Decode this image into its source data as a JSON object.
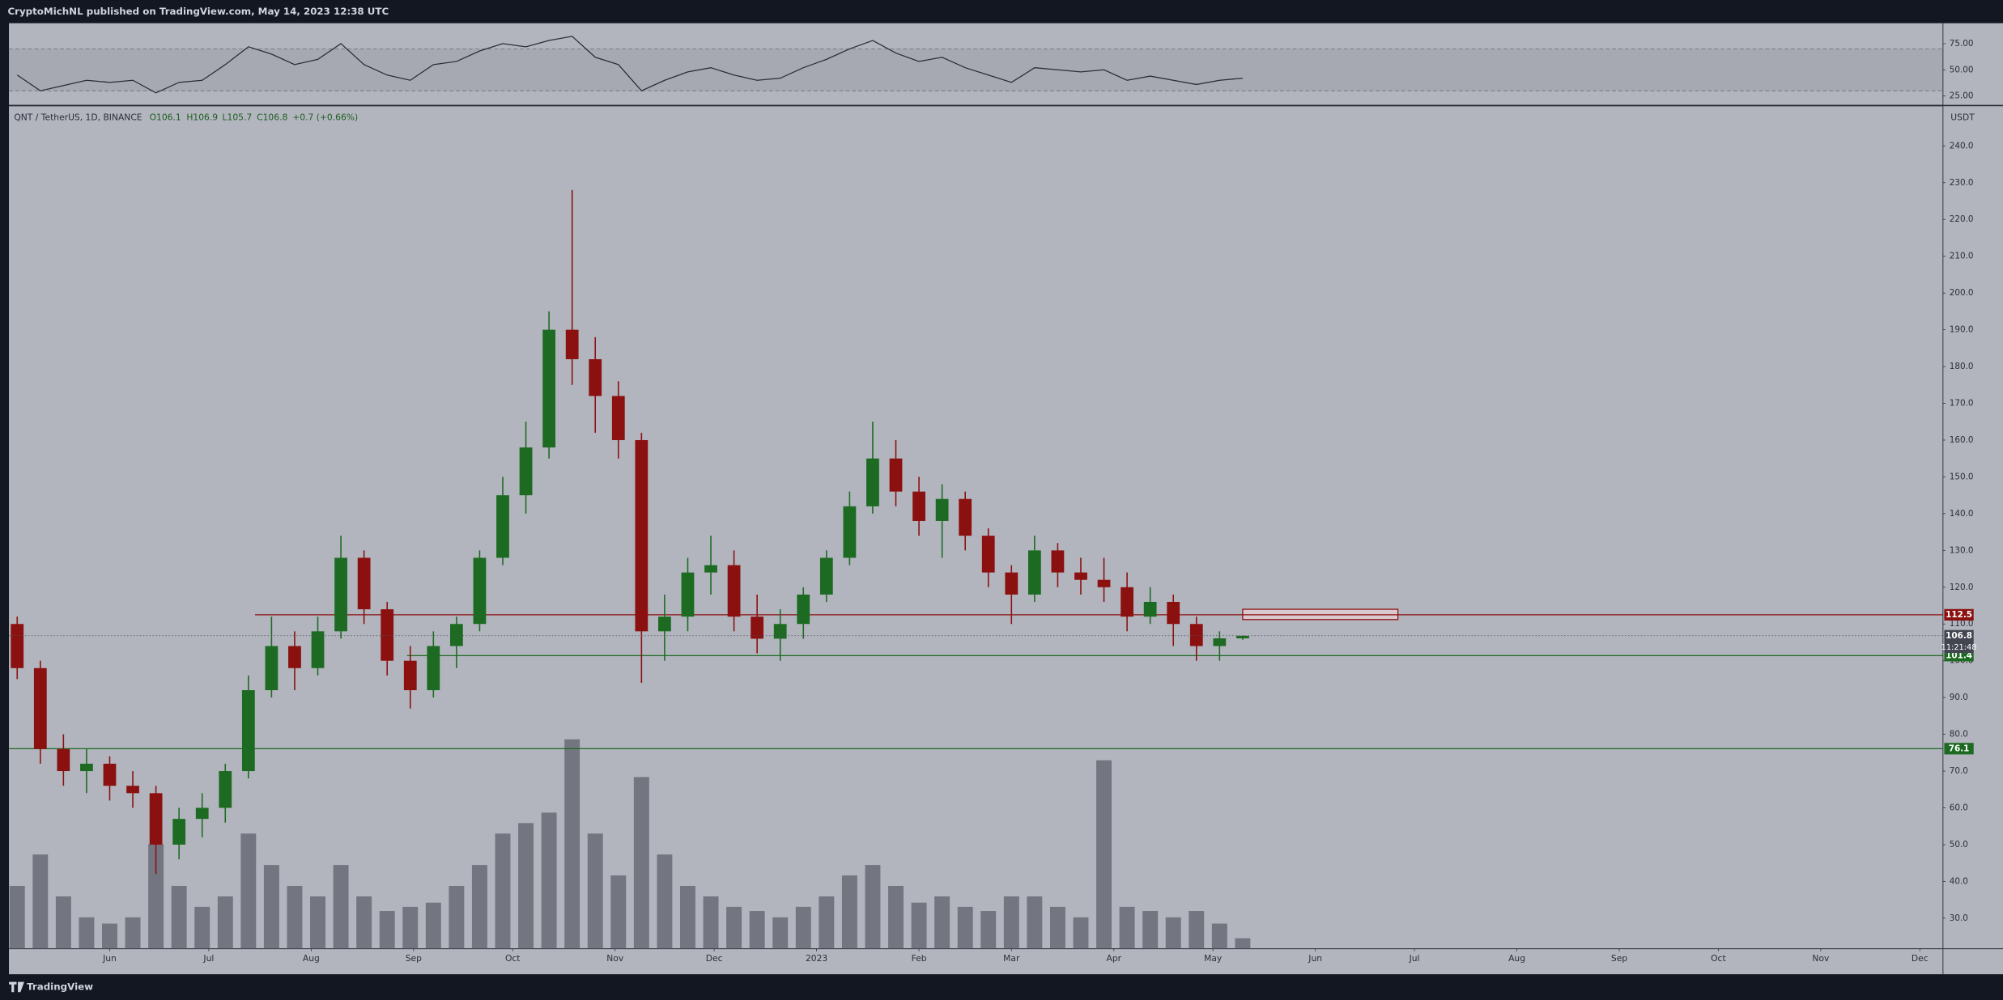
{
  "header": "CryptoMichNL published on TradingView.com, May 14, 2023 12:38 UTC",
  "footer": "TradingView",
  "chart_data": {
    "type": "candlestick",
    "symbol": "QNT / TetherUS, 1D, BINANCE",
    "ohlc_labels": [
      "O106.1",
      "H106.9",
      "L105.7",
      "C106.8"
    ],
    "change_label": "+0.7 (+0.66%)",
    "currency": "USDT",
    "countdown": "11:21:48",
    "colors": {
      "up": "#1d6b22",
      "down": "#8b1010",
      "volume": "#5d606b",
      "rsi": "#2a2e39"
    },
    "x": [
      -28,
      -21,
      -14,
      -7,
      0,
      7,
      14,
      21,
      28,
      35,
      42,
      49,
      56,
      63,
      70,
      77,
      84,
      91,
      98,
      105,
      112,
      119,
      126,
      133,
      140,
      147,
      154,
      161,
      168,
      175,
      182,
      189,
      196,
      203,
      210,
      217,
      224,
      231,
      238,
      245,
      252,
      259,
      266,
      273,
      280,
      287,
      294,
      301,
      308,
      315,
      322,
      329,
      336,
      343
    ],
    "open": [
      110,
      98,
      76,
      70,
      72,
      66,
      64,
      50,
      57,
      60,
      70,
      92,
      104,
      98,
      108,
      128,
      114,
      100,
      92,
      104,
      110,
      128,
      145,
      158,
      190,
      182,
      172,
      160,
      108,
      112,
      124,
      126,
      112,
      106,
      110,
      118,
      128,
      142,
      155,
      146,
      138,
      144,
      134,
      124,
      118,
      130,
      124,
      122,
      120,
      112,
      116,
      110,
      104,
      106.1
    ],
    "high": [
      112,
      100,
      80,
      76,
      74,
      70,
      66,
      60,
      64,
      72,
      96,
      112,
      108,
      112,
      134,
      130,
      116,
      104,
      108,
      112,
      130,
      150,
      165,
      195,
      228,
      188,
      176,
      162,
      118,
      128,
      134,
      130,
      118,
      114,
      120,
      130,
      146,
      165,
      160,
      150,
      148,
      146,
      136,
      126,
      134,
      132,
      128,
      128,
      124,
      120,
      118,
      112,
      108,
      106.9
    ],
    "low": [
      95,
      72,
      66,
      64,
      62,
      60,
      42,
      46,
      52,
      56,
      68,
      90,
      92,
      96,
      106,
      110,
      96,
      87,
      90,
      98,
      108,
      126,
      140,
      155,
      175,
      162,
      155,
      94,
      100,
      108,
      118,
      108,
      102,
      100,
      106,
      116,
      126,
      140,
      142,
      134,
      128,
      130,
      120,
      110,
      116,
      120,
      118,
      116,
      108,
      110,
      104,
      100,
      100,
      105.7
    ],
    "close": [
      98,
      76,
      70,
      72,
      66,
      64,
      50,
      57,
      60,
      70,
      92,
      104,
      98,
      108,
      128,
      114,
      100,
      92,
      104,
      110,
      128,
      145,
      158,
      190,
      182,
      172,
      160,
      108,
      112,
      124,
      126,
      112,
      106,
      110,
      118,
      128,
      142,
      155,
      146,
      138,
      144,
      134,
      124,
      118,
      130,
      124,
      122,
      120,
      112,
      116,
      110,
      104,
      106.1,
      106.8
    ],
    "volume": [
      30,
      45,
      25,
      15,
      12,
      15,
      50,
      30,
      20,
      25,
      55,
      40,
      30,
      25,
      40,
      25,
      18,
      20,
      22,
      30,
      40,
      55,
      60,
      65,
      100,
      55,
      35,
      82,
      45,
      30,
      25,
      20,
      18,
      15,
      20,
      25,
      35,
      40,
      30,
      22,
      25,
      20,
      18,
      25,
      25,
      20,
      15,
      90,
      20,
      18,
      15,
      18,
      12,
      5
    ],
    "xlim": [
      -30.5,
      555
    ],
    "xticks": [
      {
        "value": 0,
        "label": "Jun"
      },
      {
        "value": 30,
        "label": "Jul"
      },
      {
        "value": 61,
        "label": "Aug"
      },
      {
        "value": 92,
        "label": "Sep"
      },
      {
        "value": 122,
        "label": "Oct"
      },
      {
        "value": 153,
        "label": "Nov"
      },
      {
        "value": 183,
        "label": "Dec"
      },
      {
        "value": 214,
        "label": "2023"
      },
      {
        "value": 245,
        "label": "Feb"
      },
      {
        "value": 273,
        "label": "Mar"
      },
      {
        "value": 304,
        "label": "Apr"
      },
      {
        "value": 334,
        "label": "May"
      },
      {
        "value": 365,
        "label": "Jun"
      },
      {
        "value": 395,
        "label": "Jul"
      },
      {
        "value": 426,
        "label": "Aug"
      },
      {
        "value": 457,
        "label": "Sep"
      },
      {
        "value": 487,
        "label": "Oct"
      },
      {
        "value": 518,
        "label": "Nov"
      },
      {
        "value": 548,
        "label": "Dec"
      }
    ],
    "ylim": [
      21.7,
      250.8
    ],
    "yticks": [
      {
        "value": 30,
        "label": "30.0"
      },
      {
        "value": 40,
        "label": "40.0"
      },
      {
        "value": 50,
        "label": "50.0"
      },
      {
        "value": 60,
        "label": "60.0"
      },
      {
        "value": 70,
        "label": "70.0"
      },
      {
        "value": 80,
        "label": "80.0"
      },
      {
        "value": 90,
        "label": "90.0"
      },
      {
        "value": 100,
        "label": "100.0"
      },
      {
        "value": 110,
        "label": "110.0"
      },
      {
        "value": 120,
        "label": "120.0"
      },
      {
        "value": 130,
        "label": "130.0"
      },
      {
        "value": 140,
        "label": "140.0"
      },
      {
        "value": 150,
        "label": "150.0"
      },
      {
        "value": 160,
        "label": "160.0"
      },
      {
        "value": 170,
        "label": "170.0"
      },
      {
        "value": 180,
        "label": "180.0"
      },
      {
        "value": 190,
        "label": "190.0"
      },
      {
        "value": 200,
        "label": "200.0"
      },
      {
        "value": 210,
        "label": "210.0"
      },
      {
        "value": 220,
        "label": "220.0"
      },
      {
        "value": 230,
        "label": "230.0"
      },
      {
        "value": 240,
        "label": "240.0"
      }
    ],
    "levels": [
      {
        "value": 112.5,
        "color": "#8b1010",
        "from": 44
      },
      {
        "value": 101.4,
        "color": "#1d6b22",
        "from": 90
      },
      {
        "value": 76.1,
        "color": "#1d6b22",
        "from": -30.5
      }
    ],
    "zone": {
      "x": [
        343,
        390
      ],
      "y": [
        111.2,
        114
      ]
    },
    "rsi": {
      "values": [
        45,
        30,
        35,
        40,
        38,
        40,
        28,
        38,
        40,
        55,
        72,
        65,
        55,
        60,
        75,
        55,
        45,
        40,
        55,
        58,
        68,
        75,
        72,
        78,
        82,
        62,
        55,
        30,
        40,
        48,
        52,
        45,
        40,
        42,
        52,
        60,
        70,
        78,
        66,
        58,
        62,
        52,
        45,
        38,
        52,
        50,
        48,
        50,
        40,
        44,
        40,
        36,
        40,
        42
      ],
      "ylim": [
        16.5,
        94.5
      ],
      "yticks": [
        {
          "value": 75,
          "label": "75.00"
        },
        {
          "value": 50,
          "label": "50.00"
        },
        {
          "value": 25,
          "label": "25.00"
        }
      ],
      "band": [
        30,
        70
      ]
    }
  }
}
